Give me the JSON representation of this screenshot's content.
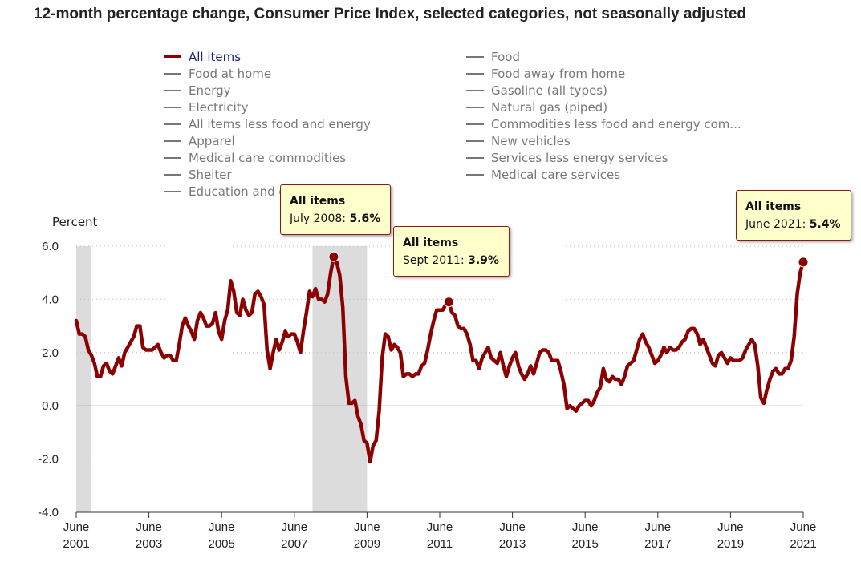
{
  "title": "12-month percentage change, Consumer Price Index, selected categories, not seasonally adjusted",
  "legend": {
    "left": [
      "All items",
      "Food at home",
      "Energy",
      "Electricity",
      "All items less food and energy",
      "Apparel",
      "Medical care commodities",
      "Shelter",
      "Education and c"
    ],
    "right": [
      "Food",
      "Food away from home",
      "Gasoline (all types)",
      "Natural gas (piped)",
      "Commodities less food and energy com...",
      "New vehicles",
      "Services less energy services",
      "Medical care services"
    ]
  },
  "colors": {
    "series": "#8b0000",
    "recession": "#dcdcdc",
    "legend_inactive": "#777777",
    "legend_active": "#1a237e"
  },
  "callouts": [
    {
      "title": "All items",
      "label": "July 2008:",
      "value": "5.6%"
    },
    {
      "title": "All items",
      "label": "Sept 2011:",
      "value": "3.9%"
    },
    {
      "title": "All items",
      "label": "June 2021:",
      "value": "5.4%"
    }
  ],
  "chart_data": {
    "type": "line",
    "title": "12-month percentage change, Consumer Price Index, selected categories, not seasonally adjusted",
    "ylabel": "Percent",
    "ylim": [
      -4.0,
      6.0
    ],
    "yticks": [
      "6.0",
      "4.0",
      "2.0",
      "0.0",
      "-2.0",
      "-4.0"
    ],
    "xticks": [
      {
        "month": "June",
        "year": "2001"
      },
      {
        "month": "June",
        "year": "2003"
      },
      {
        "month": "June",
        "year": "2005"
      },
      {
        "month": "June",
        "year": "2007"
      },
      {
        "month": "June",
        "year": "2009"
      },
      {
        "month": "June",
        "year": "2011"
      },
      {
        "month": "June",
        "year": "2013"
      },
      {
        "month": "June",
        "year": "2015"
      },
      {
        "month": "June",
        "year": "2017"
      },
      {
        "month": "June",
        "year": "2019"
      },
      {
        "month": "June",
        "year": "2021"
      }
    ],
    "x_range": [
      "2001-06",
      "2021-06"
    ],
    "grid": "dotted horizontal",
    "recessions": [
      [
        "2001-06",
        "2001-11"
      ],
      [
        "2007-12",
        "2009-06"
      ]
    ],
    "highlight_points": [
      {
        "date": "2008-07",
        "value": 5.6
      },
      {
        "date": "2011-09",
        "value": 3.9
      },
      {
        "date": "2021-06",
        "value": 5.4
      }
    ],
    "series": [
      {
        "name": "All items",
        "start": "2001-06",
        "frequency": "monthly",
        "values": [
          3.2,
          2.7,
          2.7,
          2.6,
          2.1,
          1.9,
          1.6,
          1.1,
          1.1,
          1.5,
          1.6,
          1.3,
          1.2,
          1.5,
          1.8,
          1.5,
          2.0,
          2.2,
          2.4,
          2.6,
          3.0,
          3.0,
          2.2,
          2.1,
          2.1,
          2.1,
          2.2,
          2.3,
          2.0,
          1.8,
          1.9,
          1.9,
          1.7,
          1.7,
          2.3,
          3.0,
          3.3,
          3.0,
          2.8,
          2.5,
          3.2,
          3.5,
          3.3,
          3.0,
          3.0,
          3.1,
          3.5,
          2.8,
          2.5,
          3.2,
          3.6,
          4.7,
          4.3,
          3.5,
          3.4,
          4.0,
          3.6,
          3.4,
          3.5,
          4.2,
          4.3,
          4.1,
          3.8,
          2.1,
          1.4,
          2.0,
          2.5,
          2.1,
          2.4,
          2.8,
          2.6,
          2.7,
          2.7,
          2.4,
          2.0,
          2.8,
          3.5,
          4.3,
          4.1,
          4.4,
          4.0,
          4.0,
          3.9,
          4.2,
          5.0,
          5.6,
          5.4,
          4.9,
          3.7,
          1.1,
          0.1,
          0.1,
          0.2,
          -0.4,
          -0.7,
          -1.3,
          -1.4,
          -2.1,
          -1.5,
          -1.3,
          -0.2,
          1.8,
          2.7,
          2.6,
          2.1,
          2.3,
          2.2,
          2.0,
          1.1,
          1.2,
          1.2,
          1.1,
          1.2,
          1.2,
          1.5,
          1.6,
          2.1,
          2.7,
          3.2,
          3.6,
          3.6,
          3.6,
          3.8,
          3.9,
          3.5,
          3.4,
          3.0,
          2.9,
          2.9,
          2.7,
          2.3,
          1.7,
          1.7,
          1.4,
          1.8,
          2.0,
          2.2,
          1.8,
          1.7,
          1.6,
          2.0,
          1.5,
          1.1,
          1.5,
          1.8,
          2.0,
          1.5,
          1.2,
          1.0,
          1.2,
          1.5,
          1.2,
          1.6,
          2.0,
          2.1,
          2.1,
          2.0,
          1.7,
          1.7,
          1.7,
          1.3,
          0.8,
          -0.1,
          0.0,
          -0.1,
          -0.2,
          0.0,
          0.1,
          0.2,
          0.2,
          0.0,
          0.2,
          0.5,
          0.7,
          1.4,
          1.0,
          0.9,
          1.1,
          1.0,
          1.0,
          0.8,
          1.1,
          1.5,
          1.6,
          1.7,
          2.1,
          2.5,
          2.7,
          2.4,
          2.2,
          1.9,
          1.6,
          1.7,
          1.9,
          2.2,
          2.0,
          2.2,
          2.1,
          2.1,
          2.2,
          2.4,
          2.5,
          2.8,
          2.9,
          2.9,
          2.7,
          2.3,
          2.5,
          2.2,
          1.9,
          1.6,
          1.5,
          1.9,
          2.0,
          1.8,
          1.6,
          1.8,
          1.7,
          1.7,
          1.7,
          1.8,
          2.1,
          2.3,
          2.5,
          2.3,
          1.5,
          0.3,
          0.1,
          0.6,
          1.0,
          1.3,
          1.4,
          1.2,
          1.2,
          1.4,
          1.4,
          1.7,
          2.6,
          4.2,
          5.0,
          5.4
        ]
      }
    ]
  }
}
